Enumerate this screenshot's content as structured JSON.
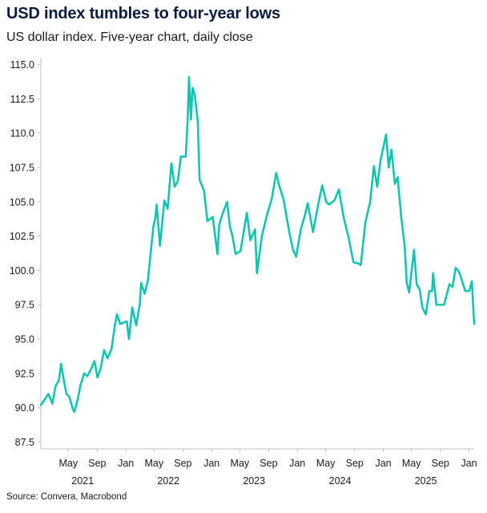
{
  "header": {
    "title": "USD index tumbles to four-year lows",
    "subtitle": "US dollar index. Five-year chart, daily close"
  },
  "footer": {
    "source": "Source: Convera, Macrobond"
  },
  "colors": {
    "line": "#13c4b0",
    "axis": "#bfbfbf",
    "text": "#1a1a1a",
    "title": "#0c1c3c"
  },
  "chart_data": {
    "type": "line",
    "title": "USD index tumbles to four-year lows",
    "subtitle": "US dollar index. Five-year chart, daily close",
    "xlabel": "",
    "ylabel": "",
    "grid": false,
    "legend": "none",
    "xlim": [
      "2021-01-04",
      "2026-01-23"
    ],
    "ylim": [
      87.0,
      115.5
    ],
    "y_ticks": [
      87.5,
      90.0,
      92.5,
      95.0,
      97.5,
      100.0,
      102.5,
      105.0,
      107.5,
      110.0,
      112.5,
      115.0
    ],
    "y_tick_labels": [
      "87.5",
      "90.0",
      "92.5",
      "95.0",
      "97.5",
      "100.0",
      "102.5",
      "105.0",
      "107.5",
      "110.0",
      "112.5",
      "115.0"
    ],
    "x_ticks": [
      {
        "date": "2021-05-01",
        "label": "May"
      },
      {
        "date": "2021-09-01",
        "label": "Sep"
      },
      {
        "date": "2022-01-01",
        "label": "Jan"
      },
      {
        "date": "2022-05-01",
        "label": "May"
      },
      {
        "date": "2022-09-01",
        "label": "Sep"
      },
      {
        "date": "2023-01-01",
        "label": "Jan"
      },
      {
        "date": "2023-05-01",
        "label": "May"
      },
      {
        "date": "2023-09-01",
        "label": "Sep"
      },
      {
        "date": "2024-01-01",
        "label": "Jan"
      },
      {
        "date": "2024-05-01",
        "label": "May"
      },
      {
        "date": "2024-09-01",
        "label": "Sep"
      },
      {
        "date": "2025-01-01",
        "label": "Jan"
      },
      {
        "date": "2025-05-01",
        "label": "May"
      },
      {
        "date": "2025-09-01",
        "label": "Sep"
      },
      {
        "date": "2026-01-01",
        "label": "Jan"
      }
    ],
    "year_labels": [
      {
        "date": "2021-07-01",
        "label": "2021"
      },
      {
        "date": "2022-07-01",
        "label": "2022"
      },
      {
        "date": "2023-07-01",
        "label": "2023"
      },
      {
        "date": "2024-07-01",
        "label": "2024"
      },
      {
        "date": "2025-07-01",
        "label": "2025"
      }
    ],
    "series": [
      {
        "x": [
          "2021-01-04",
          "2021-01-20",
          "2021-02-05",
          "2021-02-22",
          "2021-03-08",
          "2021-03-22",
          "2021-03-31",
          "2021-04-12",
          "2021-04-23",
          "2021-05-05",
          "2021-05-20",
          "2021-05-27",
          "2021-06-10",
          "2021-06-21",
          "2021-07-07",
          "2021-07-21",
          "2021-08-05",
          "2021-08-20",
          "2021-09-02",
          "2021-09-16",
          "2021-09-30",
          "2021-10-15",
          "2021-11-01",
          "2021-11-15",
          "2021-11-24",
          "2021-12-08",
          "2021-12-22",
          "2022-01-05",
          "2022-01-14",
          "2022-01-28",
          "2022-02-14",
          "2022-03-01",
          "2022-03-07",
          "2022-03-22",
          "2022-04-05",
          "2022-04-28",
          "2022-05-06",
          "2022-05-12",
          "2022-05-26",
          "2022-06-14",
          "2022-06-28",
          "2022-07-14",
          "2022-07-28",
          "2022-08-10",
          "2022-08-23",
          "2022-09-13",
          "2022-09-21",
          "2022-09-27",
          "2022-10-05",
          "2022-10-12",
          "2022-10-21",
          "2022-11-03",
          "2022-11-11",
          "2022-11-30",
          "2022-12-14",
          "2023-01-06",
          "2023-01-26",
          "2023-02-02",
          "2023-02-14",
          "2023-03-08",
          "2023-03-20",
          "2023-03-31",
          "2023-04-13",
          "2023-05-04",
          "2023-05-31",
          "2023-06-15",
          "2023-07-05",
          "2023-07-13",
          "2023-08-03",
          "2023-08-24",
          "2023-09-14",
          "2023-10-03",
          "2023-10-17",
          "2023-11-03",
          "2023-11-29",
          "2023-12-14",
          "2023-12-27",
          "2024-01-16",
          "2024-02-02",
          "2024-02-14",
          "2024-03-08",
          "2024-04-01",
          "2024-04-16",
          "2024-05-03",
          "2024-05-15",
          "2024-06-07",
          "2024-06-26",
          "2024-07-17",
          "2024-08-05",
          "2024-08-27",
          "2024-09-17",
          "2024-09-27",
          "2024-10-17",
          "2024-11-06",
          "2024-11-22",
          "2024-12-06",
          "2024-12-20",
          "2025-01-13",
          "2025-01-24",
          "2025-02-05",
          "2025-02-19",
          "2025-03-03",
          "2025-03-19",
          "2025-04-02",
          "2025-04-11",
          "2025-04-21",
          "2025-05-12",
          "2025-05-23",
          "2025-06-05",
          "2025-06-16",
          "2025-07-01",
          "2025-07-16",
          "2025-07-28",
          "2025-08-01",
          "2025-08-15",
          "2025-09-02",
          "2025-09-17",
          "2025-09-26",
          "2025-10-10",
          "2025-10-23",
          "2025-11-05",
          "2025-11-20",
          "2025-12-05",
          "2025-12-16",
          "2026-01-02",
          "2026-01-13",
          "2026-01-23"
        ],
        "y": [
          90.2,
          90.6,
          91.0,
          90.3,
          91.6,
          92.0,
          93.2,
          92.0,
          91.0,
          90.8,
          89.9,
          89.7,
          90.6,
          91.6,
          92.5,
          92.3,
          92.8,
          93.4,
          92.2,
          92.9,
          94.2,
          93.6,
          94.3,
          96.0,
          96.8,
          96.1,
          96.2,
          96.3,
          95.0,
          97.3,
          96.0,
          97.5,
          99.1,
          98.3,
          99.3,
          103.2,
          103.8,
          104.8,
          101.8,
          105.1,
          104.5,
          107.8,
          106.1,
          106.5,
          108.3,
          108.3,
          111.0,
          114.1,
          111.0,
          113.3,
          112.8,
          110.9,
          106.6,
          105.8,
          103.6,
          103.9,
          101.2,
          103.3,
          104.0,
          105.0,
          103.2,
          102.5,
          101.2,
          101.4,
          104.2,
          102.2,
          103.0,
          99.8,
          102.5,
          104.0,
          105.2,
          107.1,
          106.1,
          105.2,
          102.7,
          101.5,
          101.0,
          103.0,
          104.0,
          104.9,
          102.8,
          105.0,
          106.2,
          105.0,
          104.8,
          105.1,
          105.9,
          103.8,
          102.5,
          100.6,
          100.5,
          100.4,
          103.5,
          105.0,
          107.6,
          106.1,
          108.0,
          109.9,
          107.5,
          108.8,
          106.3,
          106.8,
          103.8,
          101.8,
          99.1,
          98.4,
          101.5,
          99.0,
          98.6,
          97.3,
          96.8,
          98.5,
          98.5,
          99.8,
          97.5,
          97.5,
          97.5,
          98.1,
          99.0,
          98.8,
          100.2,
          99.9,
          99.1,
          98.5,
          98.5,
          99.2,
          96.1
        ]
      }
    ]
  }
}
